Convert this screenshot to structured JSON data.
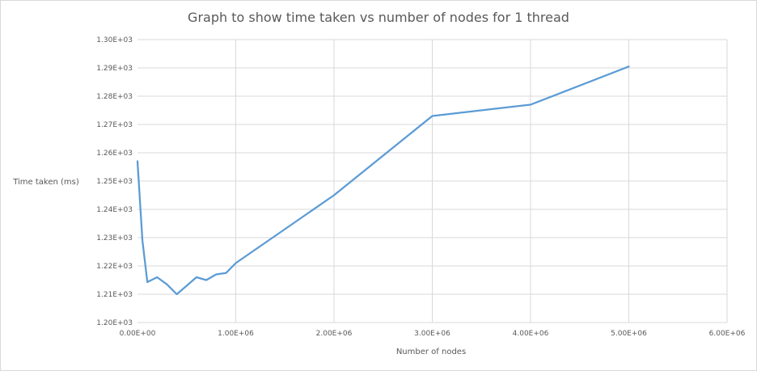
{
  "chart_data": {
    "type": "line",
    "title": "Graph to show time taken vs number of nodes for 1 thread",
    "xlabel": "Number of nodes",
    "ylabel": "Time taken (ms)",
    "xlim": [
      0,
      6000000
    ],
    "ylim": [
      1200,
      1300
    ],
    "x_ticks": [
      0,
      1000000,
      2000000,
      3000000,
      4000000,
      5000000,
      6000000
    ],
    "x_tick_labels": [
      "0.00E+00",
      "1.00E+06",
      "2.00E+06",
      "3.00E+06",
      "4.00E+06",
      "5.00E+06",
      "6.00E+06"
    ],
    "y_ticks": [
      1200,
      1210,
      1220,
      1230,
      1240,
      1250,
      1260,
      1270,
      1280,
      1290,
      1300
    ],
    "y_tick_labels": [
      "1.20E+03",
      "1.21E+03",
      "1.22E+03",
      "1.23E+03",
      "1.24E+03",
      "1.25E+03",
      "1.26E+03",
      "1.27E+03",
      "1.28E+03",
      "1.29E+03",
      "1.30E+03"
    ],
    "grid": true,
    "legend": "none",
    "series": [
      {
        "color": "#5b9bd5",
        "x": [
          0,
          50000,
          100000,
          200000,
          300000,
          400000,
          500000,
          600000,
          700000,
          800000,
          900000,
          1000000,
          2000000,
          3000000,
          4000000,
          5000000
        ],
        "y": [
          1257,
          1229,
          1214.3,
          1216,
          1213.5,
          1210,
          1213,
          1216,
          1215,
          1217,
          1217.5,
          1221,
          1245,
          1273,
          1277,
          1290.5
        ]
      }
    ]
  }
}
